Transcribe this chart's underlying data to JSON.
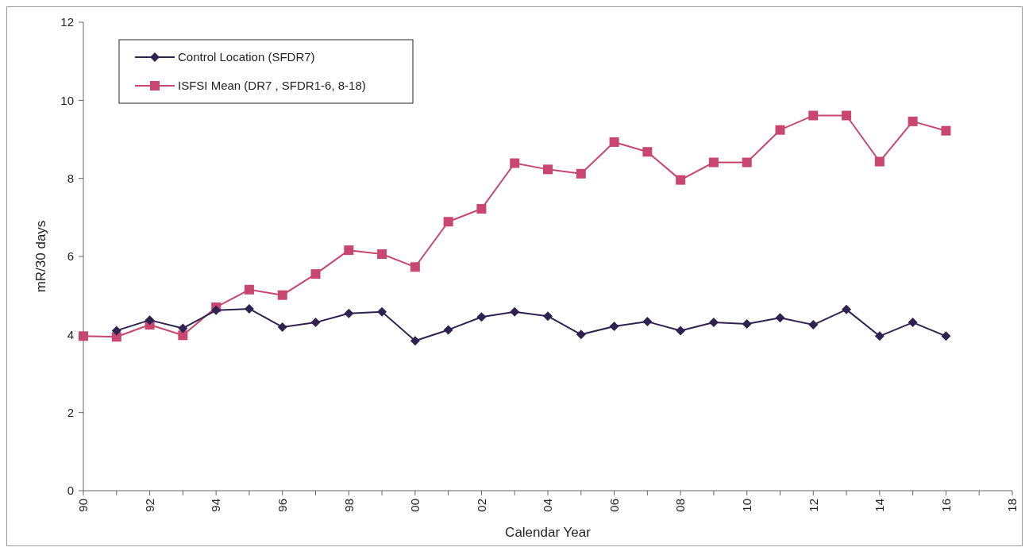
{
  "chart_data": {
    "type": "line",
    "xlabel": "Calendar Year",
    "ylabel": "mR/30 days",
    "categories": [
      "90",
      null,
      "92",
      null,
      "94",
      null,
      "96",
      null,
      "98",
      null,
      "00",
      null,
      "02",
      null,
      "04",
      null,
      "06",
      null,
      "08",
      null,
      "10",
      null,
      "12",
      null,
      "14",
      null,
      "16",
      null,
      "18"
    ],
    "ylim": [
      0,
      12
    ],
    "yticks": [
      0,
      2,
      4,
      6,
      8,
      10,
      12
    ],
    "grid": false,
    "legend": "top left",
    "line_style": "solid",
    "series": [
      {
        "name": "Control Location (SFDR7)",
        "color": "#2e2250",
        "marker": "diamond",
        "values": [
          null,
          4.1,
          4.37,
          4.16,
          4.62,
          4.66,
          4.19,
          4.31,
          4.54,
          4.58,
          3.84,
          4.12,
          4.45,
          4.58,
          4.47,
          4.0,
          4.21,
          4.33,
          4.1,
          4.31,
          4.27,
          4.43,
          4.25,
          4.64,
          3.96,
          4.31,
          3.96,
          null,
          null
        ]
      },
      {
        "name": "ISFSI Mean (DR7 , SFDR1-6, 8-18)",
        "color": "#c8466f",
        "marker": "square",
        "values": [
          3.96,
          3.94,
          4.25,
          3.98,
          4.7,
          5.15,
          5.01,
          5.55,
          6.16,
          6.06,
          5.73,
          6.89,
          7.22,
          8.39,
          8.23,
          8.12,
          8.93,
          8.68,
          7.96,
          8.41,
          8.41,
          9.24,
          9.61,
          9.61,
          8.43,
          9.46,
          9.22,
          null,
          null
        ]
      }
    ]
  }
}
